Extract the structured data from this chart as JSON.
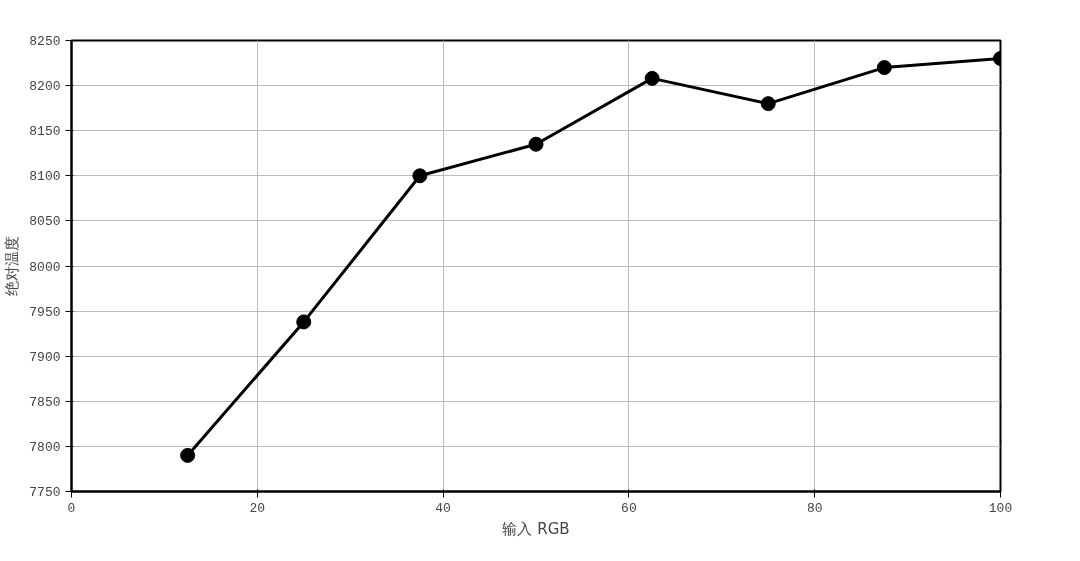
{
  "chart_data": {
    "type": "line",
    "xlabel": "输入 RGB",
    "ylabel": "绝对温度",
    "x": [
      12.5,
      25,
      37.5,
      50,
      62.5,
      75,
      87.5,
      100
    ],
    "series": [
      {
        "color": "#000000",
        "values": [
          7790,
          7938,
          8100,
          8135,
          8208,
          8180,
          8220,
          8230
        ]
      }
    ],
    "xlim": [
      0,
      100
    ],
    "xticks": [
      0,
      20,
      40,
      60,
      80,
      100
    ],
    "ylim": [
      7750,
      8250
    ],
    "yticks": [
      7750,
      7800,
      7850,
      7900,
      7950,
      8000,
      8050,
      8100,
      8150,
      8200,
      8250
    ],
    "grid": true,
    "marker": "circle",
    "line_style": "solid"
  }
}
